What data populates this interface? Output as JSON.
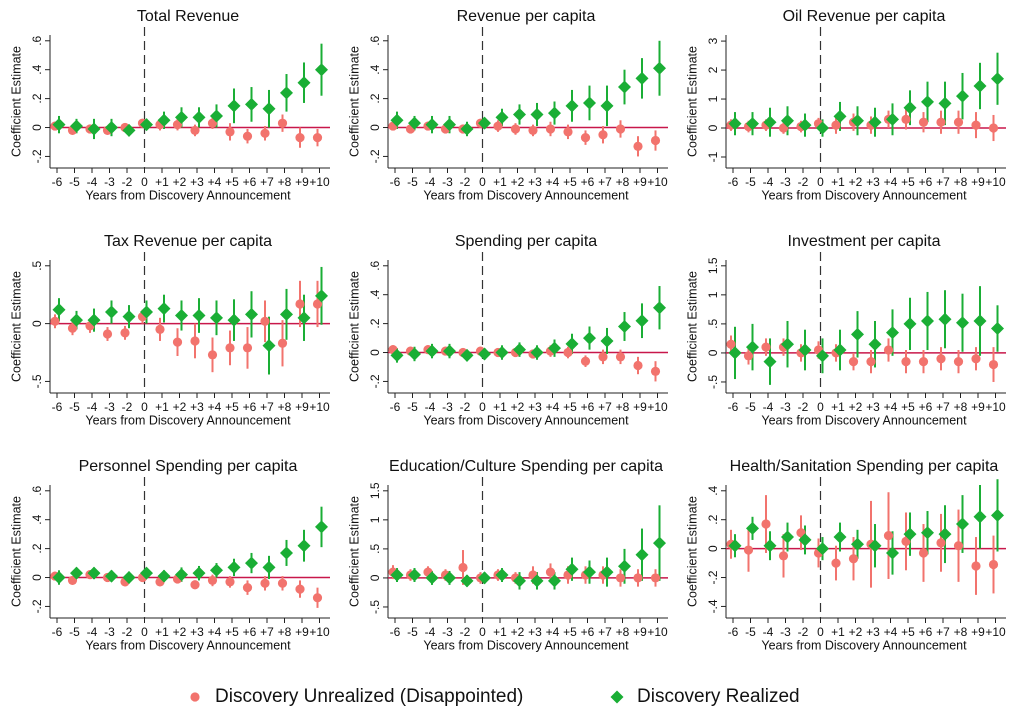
{
  "chart_data": [
    {
      "type": "errorbar",
      "title": "Total Revenue",
      "ylabel": "Coefficient Estimate",
      "xlabel": "Years from Discovery Announcement",
      "categories": [
        "-6",
        "-5",
        "-4",
        "-3",
        "-2",
        "0",
        "+1",
        "+2",
        "+3",
        "+4",
        "+5",
        "+6",
        "+7",
        "+8",
        "+9",
        "+10"
      ],
      "ylim": [
        -0.28,
        0.64
      ],
      "yticks": [
        {
          "value": -0.2,
          "label": "-.2"
        },
        0,
        {
          "value": 0.2,
          "label": ".2"
        },
        {
          "value": 0.4,
          "label": ".4"
        },
        {
          "value": 0.6,
          "label": ".6"
        }
      ],
      "vline": "0",
      "hline": 0,
      "series": [
        {
          "values": [
            0.01,
            -0.02,
            -0.01,
            -0.02,
            0.0,
            0.03,
            0.02,
            0.02,
            -0.02,
            0.03,
            -0.03,
            -0.06,
            -0.04,
            0.03,
            -0.07,
            -0.07
          ],
          "errors": [
            0.03,
            0.03,
            0.03,
            0.03,
            0.03,
            0.03,
            0.04,
            0.04,
            0.04,
            0.04,
            0.06,
            0.05,
            0.05,
            0.06,
            0.07,
            0.06
          ]
        },
        {
          "values": [
            0.02,
            0.01,
            -0.01,
            0.0,
            -0.02,
            0.02,
            0.05,
            0.07,
            0.07,
            0.08,
            0.15,
            0.16,
            0.13,
            0.24,
            0.31,
            0.4
          ],
          "errors": [
            0.06,
            0.05,
            0.07,
            0.06,
            0.04,
            0.04,
            0.06,
            0.07,
            0.07,
            0.08,
            0.12,
            0.12,
            0.13,
            0.13,
            0.14,
            0.18
          ]
        }
      ]
    },
    {
      "type": "errorbar",
      "title": "Revenue per capita",
      "ylabel": "Coefficient Estimate",
      "xlabel": "Years from Discovery Announcement",
      "categories": [
        "-6",
        "-5",
        "-4",
        "-3",
        "-2",
        "0",
        "+1",
        "+2",
        "+3",
        "+4",
        "+5",
        "+6",
        "+7",
        "+8",
        "+9",
        "+10"
      ],
      "ylim": [
        -0.28,
        0.64
      ],
      "yticks": [
        {
          "value": -0.2,
          "label": "-.2"
        },
        0,
        {
          "value": 0.2,
          "label": ".2"
        },
        {
          "value": 0.4,
          "label": ".4"
        },
        {
          "value": 0.6,
          "label": ".6"
        }
      ],
      "vline": "0",
      "hline": 0,
      "series": [
        {
          "values": [
            0.01,
            -0.01,
            0.01,
            -0.01,
            -0.01,
            0.03,
            0.01,
            -0.01,
            -0.02,
            -0.01,
            -0.03,
            -0.07,
            -0.05,
            -0.01,
            -0.13,
            -0.09
          ],
          "errors": [
            0.03,
            0.03,
            0.03,
            0.03,
            0.03,
            0.03,
            0.04,
            0.04,
            0.04,
            0.05,
            0.05,
            0.05,
            0.06,
            0.06,
            0.07,
            0.07
          ]
        },
        {
          "values": [
            0.05,
            0.03,
            0.02,
            0.02,
            -0.01,
            0.03,
            0.07,
            0.09,
            0.09,
            0.1,
            0.15,
            0.17,
            0.15,
            0.28,
            0.34,
            0.41
          ],
          "errors": [
            0.06,
            0.05,
            0.06,
            0.06,
            0.05,
            0.04,
            0.06,
            0.07,
            0.08,
            0.08,
            0.11,
            0.12,
            0.14,
            0.12,
            0.14,
            0.19
          ]
        }
      ]
    },
    {
      "type": "errorbar",
      "title": "Oil Revenue per capita",
      "ylabel": "Coefficient Estimate",
      "xlabel": "Years from Discovery Announcement",
      "categories": [
        "-6",
        "-5",
        "-4",
        "-3",
        "-2",
        "0",
        "+1",
        "+2",
        "+3",
        "+4",
        "+5",
        "+6",
        "+7",
        "+8",
        "+9",
        "+10"
      ],
      "ylim": [
        -1.38,
        3.21
      ],
      "yticks": [
        -1,
        0,
        1,
        2,
        3
      ],
      "vline": "0",
      "hline": 0,
      "series": [
        {
          "values": [
            0.1,
            0.05,
            0.1,
            0.0,
            0.05,
            0.15,
            0.1,
            0.2,
            0.1,
            0.3,
            0.3,
            0.2,
            0.2,
            0.2,
            0.1,
            0.0
          ],
          "errors": [
            0.2,
            0.2,
            0.2,
            0.2,
            0.2,
            0.2,
            0.3,
            0.3,
            0.3,
            0.3,
            0.35,
            0.35,
            0.4,
            0.4,
            0.45,
            0.45
          ]
        },
        {
          "values": [
            0.15,
            0.15,
            0.2,
            0.25,
            0.1,
            0.0,
            0.4,
            0.25,
            0.2,
            0.3,
            0.7,
            0.9,
            0.85,
            1.1,
            1.45,
            1.7
          ],
          "errors": [
            0.4,
            0.4,
            0.5,
            0.5,
            0.4,
            0.3,
            0.5,
            0.5,
            0.5,
            0.55,
            0.6,
            0.7,
            0.75,
            0.8,
            0.8,
            0.9
          ]
        }
      ]
    },
    {
      "type": "errorbar",
      "title": "Tax Revenue per capita",
      "ylabel": "Coefficient Estimate",
      "xlabel": "Years from Discovery Announcement",
      "categories": [
        "-6",
        "-5",
        "-4",
        "-3",
        "-2",
        "0",
        "+1",
        "+2",
        "+3",
        "+4",
        "+5",
        "+6",
        "+7",
        "+8",
        "+9",
        "+10"
      ],
      "ylim": [
        -0.6,
        0.55
      ],
      "yticks": [
        {
          "value": -0.5,
          "label": "-.5"
        },
        0,
        {
          "value": 0.5,
          "label": ".5"
        }
      ],
      "vline": "0",
      "hline": 0,
      "series": [
        {
          "values": [
            0.02,
            -0.04,
            -0.02,
            -0.09,
            -0.08,
            0.06,
            -0.05,
            -0.16,
            -0.15,
            -0.27,
            -0.21,
            -0.21,
            0.02,
            -0.17,
            0.17,
            0.17
          ],
          "errors": [
            0.06,
            0.06,
            0.06,
            0.06,
            0.06,
            0.06,
            0.1,
            0.12,
            0.15,
            0.15,
            0.15,
            0.18,
            0.18,
            0.2,
            0.2,
            0.2
          ]
        },
        {
          "values": [
            0.12,
            0.03,
            0.03,
            0.1,
            0.06,
            0.1,
            0.13,
            0.07,
            0.07,
            0.05,
            0.03,
            0.08,
            -0.19,
            0.08,
            0.05,
            0.24
          ],
          "errors": [
            0.1,
            0.08,
            0.1,
            0.1,
            0.1,
            0.1,
            0.12,
            0.13,
            0.15,
            0.15,
            0.18,
            0.2,
            0.25,
            0.22,
            0.2,
            0.25
          ]
        }
      ]
    },
    {
      "type": "errorbar",
      "title": "Spending per capita",
      "ylabel": "Coefficient Estimate",
      "xlabel": "Years from Discovery Announcement",
      "categories": [
        "-6",
        "-5",
        "-4",
        "-3",
        "-2",
        "0",
        "+1",
        "+2",
        "+3",
        "+4",
        "+5",
        "+6",
        "+7",
        "+8",
        "+9",
        "+10"
      ],
      "ylim": [
        -0.28,
        0.64
      ],
      "yticks": [
        {
          "value": -0.2,
          "label": "-.2"
        },
        0,
        {
          "value": 0.2,
          "label": ".2"
        },
        {
          "value": 0.4,
          "label": ".4"
        },
        {
          "value": 0.6,
          "label": ".6"
        }
      ],
      "vline": "0",
      "hline": 0,
      "series": [
        {
          "values": [
            0.02,
            0.01,
            0.02,
            0.01,
            0.0,
            0.01,
            0.0,
            0.0,
            -0.01,
            0.01,
            0.0,
            -0.06,
            -0.03,
            -0.03,
            -0.09,
            -0.13
          ],
          "errors": [
            0.03,
            0.03,
            0.03,
            0.03,
            0.03,
            0.03,
            0.03,
            0.03,
            0.03,
            0.04,
            0.04,
            0.04,
            0.05,
            0.05,
            0.06,
            0.07
          ]
        },
        {
          "values": [
            -0.02,
            -0.01,
            0.01,
            0.01,
            -0.02,
            -0.01,
            0.0,
            0.02,
            0.0,
            0.03,
            0.06,
            0.1,
            0.08,
            0.18,
            0.22,
            0.31
          ],
          "errors": [
            0.05,
            0.05,
            0.05,
            0.05,
            0.04,
            0.04,
            0.05,
            0.05,
            0.05,
            0.06,
            0.07,
            0.08,
            0.09,
            0.1,
            0.12,
            0.15
          ]
        }
      ]
    },
    {
      "type": "errorbar",
      "title": "Investment per capita",
      "ylabel": "Coefficient Estimate",
      "xlabel": "Years from Discovery Announcement",
      "categories": [
        "-6",
        "-5",
        "-4",
        "-3",
        "-2",
        "0",
        "+1",
        "+2",
        "+3",
        "+4",
        "+5",
        "+6",
        "+7",
        "+8",
        "+9",
        "+10"
      ],
      "ylim": [
        -0.69,
        1.6
      ],
      "yticks": [
        {
          "value": -0.5,
          "label": "-.5"
        },
        0,
        {
          "value": 0.5,
          "label": ".5"
        },
        1,
        1.5
      ],
      "vline": "0",
      "hline": 0,
      "series": [
        {
          "values": [
            0.15,
            -0.05,
            0.1,
            0.1,
            0.0,
            0.05,
            0.0,
            -0.15,
            -0.15,
            0.05,
            -0.15,
            -0.15,
            -0.1,
            -0.15,
            -0.1,
            -0.2
          ],
          "errors": [
            0.15,
            0.15,
            0.15,
            0.15,
            0.15,
            0.15,
            0.15,
            0.15,
            0.2,
            0.2,
            0.2,
            0.2,
            0.2,
            0.2,
            0.2,
            0.3
          ]
        },
        {
          "values": [
            0.0,
            0.1,
            -0.15,
            0.15,
            0.05,
            -0.05,
            0.05,
            0.32,
            0.15,
            0.35,
            0.5,
            0.55,
            0.58,
            0.52,
            0.55,
            0.42
          ],
          "errors": [
            0.45,
            0.4,
            0.4,
            0.4,
            0.35,
            0.3,
            0.35,
            0.4,
            0.4,
            0.4,
            0.45,
            0.5,
            0.5,
            0.5,
            0.6,
            0.4
          ]
        }
      ]
    },
    {
      "type": "errorbar",
      "title": "Personnel Spending per capita",
      "ylabel": "Coefficient Estimate",
      "xlabel": "Years from Discovery Announcement",
      "categories": [
        "-6",
        "-5",
        "-4",
        "-3",
        "-2",
        "0",
        "+1",
        "+2",
        "+3",
        "+4",
        "+5",
        "+6",
        "+7",
        "+8",
        "+9",
        "+10"
      ],
      "ylim": [
        -0.28,
        0.64
      ],
      "yticks": [
        {
          "value": -0.2,
          "label": "-.2"
        },
        0,
        {
          "value": 0.2,
          "label": ".2"
        },
        {
          "value": 0.4,
          "label": ".4"
        },
        {
          "value": 0.6,
          "label": ".6"
        }
      ],
      "vline": "0",
      "hline": 0,
      "series": [
        {
          "values": [
            0.01,
            -0.02,
            0.02,
            0.0,
            -0.03,
            0.0,
            -0.03,
            -0.01,
            -0.05,
            -0.02,
            -0.03,
            -0.07,
            -0.04,
            -0.04,
            -0.08,
            -0.14
          ],
          "errors": [
            0.03,
            0.03,
            0.03,
            0.03,
            0.03,
            0.03,
            0.03,
            0.03,
            0.03,
            0.04,
            0.04,
            0.05,
            0.05,
            0.05,
            0.06,
            0.07
          ]
        },
        {
          "values": [
            0.0,
            0.03,
            0.03,
            0.01,
            0.0,
            0.03,
            0.01,
            0.02,
            0.03,
            0.05,
            0.07,
            0.1,
            0.07,
            0.17,
            0.22,
            0.35
          ],
          "errors": [
            0.05,
            0.04,
            0.04,
            0.04,
            0.04,
            0.03,
            0.04,
            0.05,
            0.05,
            0.05,
            0.06,
            0.07,
            0.08,
            0.09,
            0.11,
            0.14
          ]
        }
      ]
    },
    {
      "type": "errorbar",
      "title": "Education/Culture Spending per capita",
      "ylabel": "Coefficient Estimate",
      "xlabel": "Years from Discovery Announcement",
      "categories": [
        "-6",
        "-5",
        "-4",
        "-3",
        "-2",
        "0",
        "+1",
        "+2",
        "+3",
        "+4",
        "+5",
        "+6",
        "+7",
        "+8",
        "+9",
        "+10"
      ],
      "ylim": [
        -0.69,
        1.6
      ],
      "yticks": [
        {
          "value": -0.5,
          "label": "-.5"
        },
        0,
        {
          "value": 0.5,
          "label": ".5"
        },
        1,
        1.5
      ],
      "vline": "0",
      "hline": 0,
      "series": [
        {
          "values": [
            0.1,
            0.05,
            0.1,
            0.05,
            0.18,
            0.0,
            0.05,
            0.0,
            0.05,
            0.1,
            0.05,
            0.05,
            0.05,
            0.0,
            0.0,
            0.0
          ],
          "errors": [
            0.12,
            0.1,
            0.1,
            0.1,
            0.3,
            0.1,
            0.1,
            0.1,
            0.15,
            0.15,
            0.15,
            0.15,
            0.15,
            0.15,
            0.15,
            0.15
          ]
        },
        {
          "values": [
            0.05,
            0.05,
            0.0,
            0.0,
            -0.05,
            0.0,
            0.05,
            -0.05,
            -0.05,
            -0.05,
            0.15,
            0.1,
            0.1,
            0.2,
            0.4,
            0.6
          ],
          "errors": [
            0.12,
            0.12,
            0.12,
            0.12,
            0.1,
            0.1,
            0.12,
            0.15,
            0.15,
            0.15,
            0.2,
            0.2,
            0.25,
            0.3,
            0.45,
            0.65
          ]
        }
      ]
    },
    {
      "type": "errorbar",
      "title": "Health/Sanitation Spending per capita",
      "ylabel": "Coefficient Estimate",
      "xlabel": "Years from Discovery Announcement",
      "categories": [
        "-6",
        "-5",
        "-4",
        "-3",
        "-2",
        "0",
        "+1",
        "+2",
        "+3",
        "+4",
        "+5",
        "+6",
        "+7",
        "+8",
        "+9",
        "+10"
      ],
      "ylim": [
        -0.48,
        0.44
      ],
      "yticks": [
        {
          "value": -0.4,
          "label": "-.4"
        },
        {
          "value": -0.2,
          "label": "-.2"
        },
        0,
        {
          "value": 0.2,
          "label": ".2"
        },
        {
          "value": 0.4,
          "label": ".4"
        }
      ],
      "vline": "0",
      "hline": 0,
      "series": [
        {
          "values": [
            0.03,
            -0.01,
            0.17,
            -0.05,
            0.11,
            -0.03,
            -0.1,
            -0.07,
            0.03,
            0.09,
            0.05,
            -0.03,
            0.04,
            0.02,
            -0.12,
            -0.11
          ],
          "errors": [
            0.1,
            0.15,
            0.2,
            0.15,
            0.12,
            0.1,
            0.12,
            0.15,
            0.3,
            0.3,
            0.2,
            0.2,
            0.2,
            0.25,
            0.2,
            0.2
          ]
        },
        {
          "values": [
            0.02,
            0.14,
            0.02,
            0.08,
            0.06,
            0.0,
            0.08,
            0.03,
            0.02,
            -0.03,
            0.1,
            0.11,
            0.1,
            0.17,
            0.22,
            0.23
          ],
          "errors": [
            0.08,
            0.08,
            0.1,
            0.1,
            0.1,
            0.08,
            0.1,
            0.1,
            0.15,
            0.15,
            0.15,
            0.15,
            0.2,
            0.2,
            0.22,
            0.25
          ]
        }
      ]
    }
  ],
  "legend": [
    {
      "name": "Discovery Unrealized (Disappointed)",
      "color": "#f2736d",
      "marker": "circle"
    },
    {
      "name": "Discovery Realized",
      "color": "#1aae35",
      "marker": "diamond"
    }
  ],
  "hline_color": "#c8174a"
}
